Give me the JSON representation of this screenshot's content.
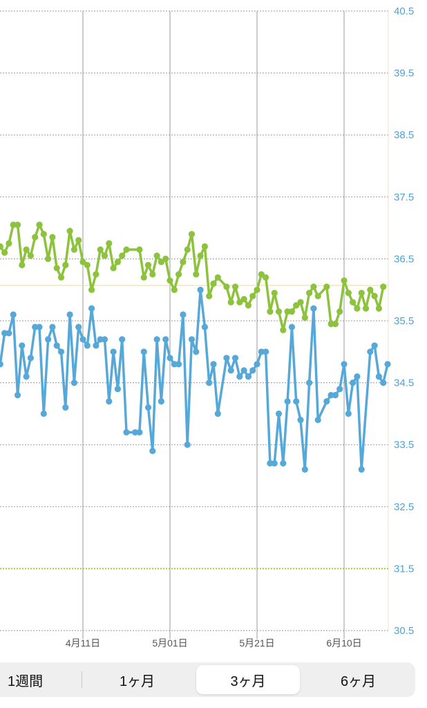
{
  "chart_data": {
    "type": "line",
    "title": "",
    "xlabel": "",
    "ylabel": "",
    "x_start": "2026-03-23",
    "x_end": "2026-06-17",
    "ylim": [
      30.5,
      40.5
    ],
    "yticks": [
      30.5,
      31.5,
      32.5,
      33.5,
      34.5,
      35.5,
      36.5,
      37.5,
      38.5,
      39.5,
      40.5
    ],
    "xticks": [
      {
        "date": "2026-04-11",
        "label": "4月11日"
      },
      {
        "date": "2026-05-01",
        "label": "5月01日"
      },
      {
        "date": "2026-05-21",
        "label": "5月21日"
      },
      {
        "date": "2026-06-10",
        "label": "6月10日"
      }
    ],
    "reference_lines": [
      {
        "value": 36.07,
        "color": "#e8d9a8",
        "style": "solid"
      },
      {
        "value": 31.5,
        "color": "#9ccb4a",
        "style": "dotted"
      }
    ],
    "series": [
      {
        "color": "#8cc23c",
        "points": [
          {
            "x": "2026-03-23",
            "y": 36.7
          },
          {
            "x": "2026-03-24",
            "y": 36.6
          },
          {
            "x": "2026-03-25",
            "y": 36.75
          },
          {
            "x": "2026-03-26",
            "y": 37.05
          },
          {
            "x": "2026-03-27",
            "y": 37.05
          },
          {
            "x": "2026-03-28",
            "y": 36.4
          },
          {
            "x": "2026-03-29",
            "y": 36.65
          },
          {
            "x": "2026-03-30",
            "y": 36.55
          },
          {
            "x": "2026-03-31",
            "y": 36.85
          },
          {
            "x": "2026-04-01",
            "y": 37.05
          },
          {
            "x": "2026-04-02",
            "y": 36.9
          },
          {
            "x": "2026-04-03",
            "y": 36.5
          },
          {
            "x": "2026-04-04",
            "y": 36.85
          },
          {
            "x": "2026-04-05",
            "y": 36.35
          },
          {
            "x": "2026-04-06",
            "y": 36.2
          },
          {
            "x": "2026-04-07",
            "y": 36.4
          },
          {
            "x": "2026-04-08",
            "y": 36.95
          },
          {
            "x": "2026-04-09",
            "y": 36.65
          },
          {
            "x": "2026-04-10",
            "y": 36.8
          },
          {
            "x": "2026-04-11",
            "y": 36.45
          },
          {
            "x": "2026-04-12",
            "y": 36.4
          },
          {
            "x": "2026-04-13",
            "y": 36.0
          },
          {
            "x": "2026-04-14",
            "y": 36.25
          },
          {
            "x": "2026-04-15",
            "y": 36.65
          },
          {
            "x": "2026-04-16",
            "y": 36.55
          },
          {
            "x": "2026-04-17",
            "y": 36.75
          },
          {
            "x": "2026-04-18",
            "y": 36.35
          },
          {
            "x": "2026-04-19",
            "y": 36.45
          },
          {
            "x": "2026-04-20",
            "y": 36.55
          },
          {
            "x": "2026-04-21",
            "y": 36.65
          },
          {
            "x": "2026-04-24",
            "y": 36.65
          },
          {
            "x": "2026-04-25",
            "y": 36.2
          },
          {
            "x": "2026-04-26",
            "y": 36.4
          },
          {
            "x": "2026-04-27",
            "y": 36.25
          },
          {
            "x": "2026-04-28",
            "y": 36.55
          },
          {
            "x": "2026-04-29",
            "y": 36.45
          },
          {
            "x": "2026-04-30",
            "y": 36.5
          },
          {
            "x": "2026-05-01",
            "y": 36.15
          },
          {
            "x": "2026-05-02",
            "y": 36.0
          },
          {
            "x": "2026-05-03",
            "y": 36.25
          },
          {
            "x": "2026-05-04",
            "y": 36.45
          },
          {
            "x": "2026-05-05",
            "y": 36.65
          },
          {
            "x": "2026-05-06",
            "y": 36.9
          },
          {
            "x": "2026-05-07",
            "y": 36.25
          },
          {
            "x": "2026-05-08",
            "y": 36.55
          },
          {
            "x": "2026-05-09",
            "y": 36.7
          },
          {
            "x": "2026-05-10",
            "y": 35.9
          },
          {
            "x": "2026-05-11",
            "y": 36.1
          },
          {
            "x": "2026-05-12",
            "y": 36.2
          },
          {
            "x": "2026-05-14",
            "y": 36.05
          },
          {
            "x": "2026-05-15",
            "y": 35.8
          },
          {
            "x": "2026-05-16",
            "y": 36.05
          },
          {
            "x": "2026-05-17",
            "y": 35.8
          },
          {
            "x": "2026-05-18",
            "y": 35.85
          },
          {
            "x": "2026-05-19",
            "y": 35.75
          },
          {
            "x": "2026-05-20",
            "y": 35.9
          },
          {
            "x": "2026-05-21",
            "y": 36.0
          },
          {
            "x": "2026-05-22",
            "y": 36.25
          },
          {
            "x": "2026-05-23",
            "y": 36.2
          },
          {
            "x": "2026-05-24",
            "y": 35.65
          },
          {
            "x": "2026-05-25",
            "y": 35.95
          },
          {
            "x": "2026-05-26",
            "y": 35.65
          },
          {
            "x": "2026-05-27",
            "y": 35.35
          },
          {
            "x": "2026-05-28",
            "y": 35.65
          },
          {
            "x": "2026-05-29",
            "y": 35.65
          },
          {
            "x": "2026-05-30",
            "y": 35.75
          },
          {
            "x": "2026-05-31",
            "y": 35.8
          },
          {
            "x": "2026-06-01",
            "y": 35.55
          },
          {
            "x": "2026-06-02",
            "y": 35.95
          },
          {
            "x": "2026-06-03",
            "y": 36.05
          },
          {
            "x": "2026-06-04",
            "y": 35.9
          },
          {
            "x": "2026-06-06",
            "y": 36.05
          },
          {
            "x": "2026-06-07",
            "y": 35.45
          },
          {
            "x": "2026-06-08",
            "y": 35.45
          },
          {
            "x": "2026-06-09",
            "y": 35.65
          },
          {
            "x": "2026-06-10",
            "y": 36.15
          },
          {
            "x": "2026-06-11",
            "y": 35.95
          },
          {
            "x": "2026-06-12",
            "y": 35.8
          },
          {
            "x": "2026-06-13",
            "y": 35.7
          },
          {
            "x": "2026-06-14",
            "y": 35.95
          },
          {
            "x": "2026-06-15",
            "y": 35.7
          },
          {
            "x": "2026-06-16",
            "y": 36.0
          },
          {
            "x": "2026-06-17",
            "y": 35.9
          },
          {
            "x": "2026-06-18",
            "y": 35.7
          },
          {
            "x": "2026-06-19",
            "y": 36.05
          }
        ]
      },
      {
        "color": "#56a8d8",
        "points": [
          {
            "x": "2026-03-23",
            "y": 34.8
          },
          {
            "x": "2026-03-24",
            "y": 35.3
          },
          {
            "x": "2026-03-25",
            "y": 35.3
          },
          {
            "x": "2026-03-26",
            "y": 35.6
          },
          {
            "x": "2026-03-27",
            "y": 34.3
          },
          {
            "x": "2026-03-28",
            "y": 35.1
          },
          {
            "x": "2026-03-29",
            "y": 34.6
          },
          {
            "x": "2026-03-30",
            "y": 34.9
          },
          {
            "x": "2026-03-31",
            "y": 35.4
          },
          {
            "x": "2026-04-01",
            "y": 35.4
          },
          {
            "x": "2026-04-02",
            "y": 34.0
          },
          {
            "x": "2026-04-03",
            "y": 35.2
          },
          {
            "x": "2026-04-04",
            "y": 35.4
          },
          {
            "x": "2026-04-05",
            "y": 35.1
          },
          {
            "x": "2026-04-06",
            "y": 35.0
          },
          {
            "x": "2026-04-07",
            "y": 34.1
          },
          {
            "x": "2026-04-08",
            "y": 35.6
          },
          {
            "x": "2026-04-09",
            "y": 34.5
          },
          {
            "x": "2026-04-10",
            "y": 35.4
          },
          {
            "x": "2026-04-11",
            "y": 35.2
          },
          {
            "x": "2026-04-12",
            "y": 35.1
          },
          {
            "x": "2026-04-13",
            "y": 35.7
          },
          {
            "x": "2026-04-14",
            "y": 35.1
          },
          {
            "x": "2026-04-15",
            "y": 35.2
          },
          {
            "x": "2026-04-16",
            "y": 35.2
          },
          {
            "x": "2026-04-17",
            "y": 34.2
          },
          {
            "x": "2026-04-18",
            "y": 35.0
          },
          {
            "x": "2026-04-19",
            "y": 34.4
          },
          {
            "x": "2026-04-20",
            "y": 35.2
          },
          {
            "x": "2026-04-21",
            "y": 33.7
          },
          {
            "x": "2026-04-23",
            "y": 33.7
          },
          {
            "x": "2026-04-24",
            "y": 33.7
          },
          {
            "x": "2026-04-25",
            "y": 35.0
          },
          {
            "x": "2026-04-26",
            "y": 34.1
          },
          {
            "x": "2026-04-27",
            "y": 33.4
          },
          {
            "x": "2026-04-28",
            "y": 35.2
          },
          {
            "x": "2026-04-29",
            "y": 34.2
          },
          {
            "x": "2026-04-30",
            "y": 35.2
          },
          {
            "x": "2026-05-01",
            "y": 34.9
          },
          {
            "x": "2026-05-02",
            "y": 34.8
          },
          {
            "x": "2026-05-03",
            "y": 34.8
          },
          {
            "x": "2026-05-04",
            "y": 35.6
          },
          {
            "x": "2026-05-05",
            "y": 33.5
          },
          {
            "x": "2026-05-06",
            "y": 35.2
          },
          {
            "x": "2026-05-07",
            "y": 35.0
          },
          {
            "x": "2026-05-08",
            "y": 36.0
          },
          {
            "x": "2026-05-09",
            "y": 35.4
          },
          {
            "x": "2026-05-10",
            "y": 34.5
          },
          {
            "x": "2026-05-11",
            "y": 34.8
          },
          {
            "x": "2026-05-12",
            "y": 34.0
          },
          {
            "x": "2026-05-14",
            "y": 34.9
          },
          {
            "x": "2026-05-15",
            "y": 34.7
          },
          {
            "x": "2026-05-16",
            "y": 34.9
          },
          {
            "x": "2026-05-17",
            "y": 34.6
          },
          {
            "x": "2026-05-18",
            "y": 34.7
          },
          {
            "x": "2026-05-19",
            "y": 34.6
          },
          {
            "x": "2026-05-20",
            "y": 34.7
          },
          {
            "x": "2026-05-21",
            "y": 34.8
          },
          {
            "x": "2026-05-22",
            "y": 35.0
          },
          {
            "x": "2026-05-23",
            "y": 35.0
          },
          {
            "x": "2026-05-24",
            "y": 33.2
          },
          {
            "x": "2026-05-25",
            "y": 33.2
          },
          {
            "x": "2026-05-26",
            "y": 34.0
          },
          {
            "x": "2026-05-27",
            "y": 33.2
          },
          {
            "x": "2026-05-28",
            "y": 34.2
          },
          {
            "x": "2026-05-29",
            "y": 35.4
          },
          {
            "x": "2026-05-30",
            "y": 34.2
          },
          {
            "x": "2026-05-31",
            "y": 33.9
          },
          {
            "x": "2026-06-01",
            "y": 33.1
          },
          {
            "x": "2026-06-02",
            "y": 34.5
          },
          {
            "x": "2026-06-03",
            "y": 35.7
          },
          {
            "x": "2026-06-04",
            "y": 33.9
          },
          {
            "x": "2026-06-06",
            "y": 34.2
          },
          {
            "x": "2026-06-07",
            "y": 34.3
          },
          {
            "x": "2026-06-08",
            "y": 34.3
          },
          {
            "x": "2026-06-09",
            "y": 34.4
          },
          {
            "x": "2026-06-10",
            "y": 34.8
          },
          {
            "x": "2026-06-11",
            "y": 34.0
          },
          {
            "x": "2026-06-12",
            "y": 34.5
          },
          {
            "x": "2026-06-13",
            "y": 34.6
          },
          {
            "x": "2026-06-14",
            "y": 33.1
          },
          {
            "x": "2026-06-16",
            "y": 35.0
          },
          {
            "x": "2026-06-17",
            "y": 35.1
          },
          {
            "x": "2026-06-18",
            "y": 34.6
          },
          {
            "x": "2026-06-19",
            "y": 34.5
          },
          {
            "x": "2026-06-20",
            "y": 34.8
          }
        ]
      }
    ]
  },
  "range_selector": {
    "options": [
      "1週間",
      "1ヶ月",
      "3ヶ月",
      "6ヶ月"
    ],
    "selected": "3ヶ月"
  }
}
